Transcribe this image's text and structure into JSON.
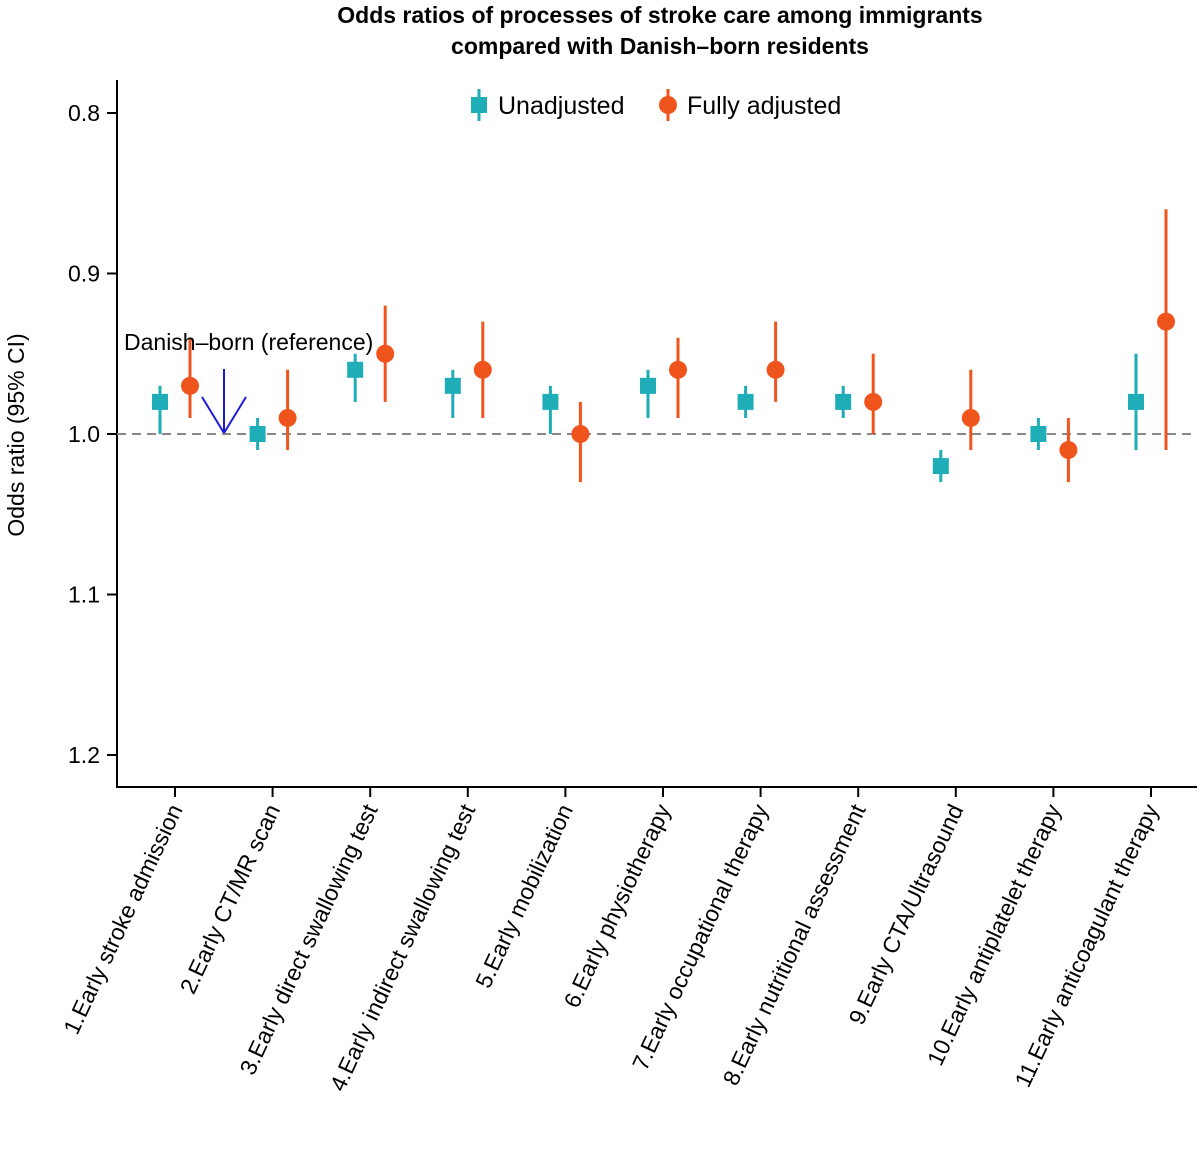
{
  "chart_data": {
    "type": "scatter",
    "title_lines": [
      "Odds ratios of processes of stroke care among immigrants",
      "compared with Danish–born residents"
    ],
    "ylabel": "Odds ratio (95% CI)",
    "ylim": [
      0.78,
      1.22
    ],
    "yticks": [
      0.8,
      0.9,
      1.0,
      1.1,
      1.2
    ],
    "ytick_labels": [
      "0.8",
      "0.9",
      "1.0",
      "1.1",
      "1.2"
    ],
    "reference_line": 1.0,
    "annotation": {
      "text": "Danish–born (reference)",
      "color": "#1a1adb",
      "points_to_value": 1.0
    },
    "legend": {
      "position": "top-center"
    },
    "categories": [
      "1.Early stroke admission",
      "2.Early CT/MR scan",
      "3.Early direct swallowing test",
      "4.Early indirect swallowing test",
      "5.Early mobilization",
      "6.Early physiotherapy",
      "7.Early occupational therapy",
      "8.Early nutritional assessment",
      "9.Early CTA/Ultrasound",
      "10.Early antiplatelet therapy",
      "11.Early anticoagulant therapy"
    ],
    "series": [
      {
        "name": "Unadjusted",
        "color": "#1fadb8",
        "marker": "square",
        "values": [
          0.98,
          1.0,
          0.96,
          0.97,
          0.98,
          0.97,
          0.98,
          0.98,
          1.02,
          1.0,
          0.98
        ],
        "ci_low": [
          0.97,
          0.99,
          0.95,
          0.96,
          0.97,
          0.96,
          0.97,
          0.97,
          1.01,
          0.99,
          0.95
        ],
        "ci_high": [
          1.0,
          1.01,
          0.98,
          0.99,
          1.0,
          0.99,
          0.99,
          0.99,
          1.03,
          1.01,
          1.01
        ]
      },
      {
        "name": "Fully adjusted",
        "color": "#f0541d",
        "marker": "circle",
        "values": [
          0.97,
          0.99,
          0.95,
          0.96,
          1.0,
          0.96,
          0.96,
          0.98,
          0.99,
          1.01,
          0.93
        ],
        "ci_low": [
          0.94,
          0.96,
          0.92,
          0.93,
          0.98,
          0.94,
          0.93,
          0.95,
          0.96,
          0.99,
          0.86
        ],
        "ci_high": [
          0.99,
          1.01,
          0.98,
          0.99,
          1.03,
          0.99,
          0.98,
          1.0,
          1.01,
          1.03,
          1.01
        ]
      }
    ]
  }
}
